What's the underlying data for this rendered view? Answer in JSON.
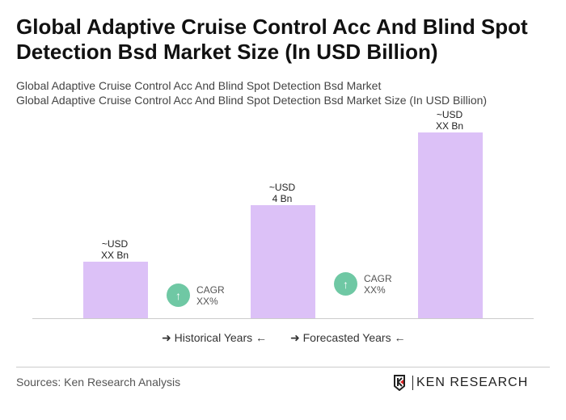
{
  "title": "Global Adaptive Cruise Control Acc And Blind Spot Detection Bsd Market Size (In USD Billion)",
  "subtitle1": "Global Adaptive Cruise Control Acc And Blind Spot Detection Bsd Market",
  "subtitle2": "Global Adaptive Cruise Control Acc And Blind Spot Detection Bsd Market Size (In USD Billion)",
  "chart_data": {
    "type": "bar",
    "bars": [
      {
        "label_line1": "~USD",
        "label_line2": "XX Bn"
      },
      {
        "label_line1": "~USD",
        "label_line2": "4 Bn",
        "value": 4
      },
      {
        "label_line1": "~USD",
        "label_line2": "XX Bn"
      }
    ],
    "cagr": [
      {
        "label": "CAGR",
        "value": "XX%"
      },
      {
        "label": "CAGR",
        "value": "XX%"
      }
    ],
    "legend": [
      "Historical Years",
      "Forecasted Years"
    ],
    "bar_color": "#dcc1f7",
    "cagr_color": "#6fc8a4",
    "grid": false
  },
  "footer": {
    "source": "Sources: Ken Research Analysis",
    "logo": "KEN RESEARCH"
  }
}
